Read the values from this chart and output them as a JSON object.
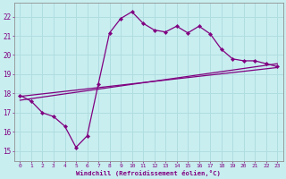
{
  "xlabel": "Windchill (Refroidissement éolien,°C)",
  "background_color": "#c8eef0",
  "grid_color": "#b0dde0",
  "line_color": "#800080",
  "spine_color": "#909090",
  "xlim": [
    -0.5,
    23.5
  ],
  "ylim": [
    14.5,
    22.7
  ],
  "xticks": [
    0,
    1,
    2,
    3,
    4,
    5,
    6,
    7,
    8,
    9,
    10,
    11,
    12,
    13,
    14,
    15,
    16,
    17,
    18,
    19,
    20,
    21,
    22,
    23
  ],
  "yticks": [
    15,
    16,
    17,
    18,
    19,
    20,
    21,
    22
  ],
  "curve1_x": [
    0,
    1,
    2,
    3,
    4,
    5,
    6,
    7,
    8,
    9,
    10,
    11,
    12,
    13,
    14,
    15,
    16,
    17,
    18,
    19,
    20,
    21,
    22,
    23
  ],
  "curve1_y": [
    17.9,
    17.6,
    17.0,
    16.8,
    16.3,
    15.2,
    15.8,
    18.5,
    21.15,
    21.9,
    22.25,
    21.65,
    21.3,
    21.2,
    21.5,
    21.15,
    21.5,
    21.1,
    20.3,
    19.8,
    19.7,
    19.7,
    19.55,
    19.4
  ],
  "line1_x": [
    0,
    23
  ],
  "line1_y": [
    17.85,
    19.35
  ],
  "line2_x": [
    0,
    23
  ],
  "line2_y": [
    17.65,
    19.55
  ]
}
